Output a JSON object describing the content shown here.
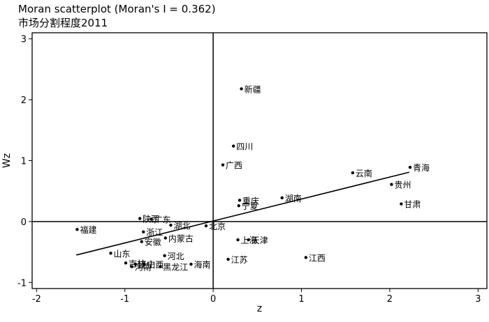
{
  "chart_data": {
    "type": "scatter",
    "title": "Moran scatterplot (Moran's I = 0.362)",
    "subtitle": "市场分割程度2011",
    "xlabel": "z",
    "ylabel": "Wz",
    "xlim": [
      -2.05,
      3.1
    ],
    "ylim": [
      -1.1,
      3.1
    ],
    "xticks": [
      "-2",
      "-1",
      "0",
      "1",
      "2",
      "3"
    ],
    "yticks": [
      "-1",
      "0",
      "1",
      "2",
      "3"
    ],
    "xtick_values": [
      -2,
      -1,
      0,
      1,
      2,
      3
    ],
    "ytick_values": [
      -1,
      0,
      1,
      2,
      3
    ],
    "grid": false,
    "reference_lines": {
      "x": 0,
      "y": 0
    },
    "fit_line": {
      "x": [
        -1.55,
        2.22
      ],
      "y": [
        -0.55,
        0.81
      ]
    },
    "points": [
      {
        "label": "新疆",
        "x": 0.32,
        "y": 2.18
      },
      {
        "label": "四川",
        "x": 0.23,
        "y": 1.24
      },
      {
        "label": "广西",
        "x": 0.11,
        "y": 0.93
      },
      {
        "label": "青海",
        "x": 2.23,
        "y": 0.89
      },
      {
        "label": "云南",
        "x": 1.58,
        "y": 0.8
      },
      {
        "label": "贵州",
        "x": 2.02,
        "y": 0.61
      },
      {
        "label": "湖南",
        "x": 0.78,
        "y": 0.39
      },
      {
        "label": "重庆",
        "x": 0.3,
        "y": 0.35
      },
      {
        "label": "宁夏",
        "x": 0.29,
        "y": 0.26
      },
      {
        "label": "甘肃",
        "x": 2.13,
        "y": 0.29
      },
      {
        "label": "陕西",
        "x": -0.83,
        "y": 0.05
      },
      {
        "label": "广东",
        "x": -0.7,
        "y": 0.04
      },
      {
        "label": "湖北",
        "x": -0.48,
        "y": -0.06
      },
      {
        "label": "北京",
        "x": -0.08,
        "y": -0.07
      },
      {
        "label": "福建",
        "x": -1.54,
        "y": -0.13
      },
      {
        "label": "浙江",
        "x": -0.79,
        "y": -0.17
      },
      {
        "label": "内蒙古",
        "x": -0.54,
        "y": -0.27
      },
      {
        "label": "安徽",
        "x": -0.81,
        "y": -0.33
      },
      {
        "label": "上海",
        "x": 0.28,
        "y": -0.3
      },
      {
        "label": "天津",
        "x": 0.4,
        "y": -0.3
      },
      {
        "label": "山东",
        "x": -1.16,
        "y": -0.52
      },
      {
        "label": "河北",
        "x": -0.55,
        "y": -0.56
      },
      {
        "label": "江苏",
        "x": 0.17,
        "y": -0.62
      },
      {
        "label": "江西",
        "x": 1.05,
        "y": -0.59
      },
      {
        "label": "吉林",
        "x": -0.99,
        "y": -0.68
      },
      {
        "label": "辽宁",
        "x": -0.88,
        "y": -0.7
      },
      {
        "label": "山西",
        "x": -0.78,
        "y": -0.7
      },
      {
        "label": "河南",
        "x": -0.92,
        "y": -0.74
      },
      {
        "label": "黑龙江",
        "x": -0.6,
        "y": -0.74
      },
      {
        "label": "海南",
        "x": -0.25,
        "y": -0.7
      }
    ]
  }
}
